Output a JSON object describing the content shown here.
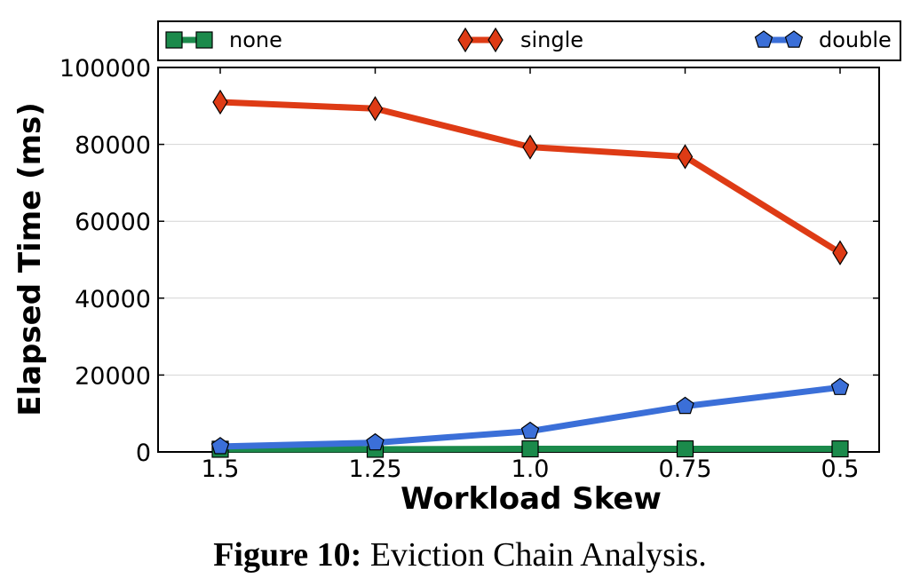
{
  "chart_data": {
    "type": "line",
    "xlabel": "Workload Skew",
    "ylabel": "Elapsed Time (ms)",
    "categories": [
      "1.5",
      "1.25",
      "1.0",
      "0.75",
      "0.5"
    ],
    "ylim": [
      0,
      100000
    ],
    "yticks": [
      "0",
      "20000",
      "40000",
      "60000",
      "80000",
      "100000"
    ],
    "ytick_values": [
      0,
      20000,
      40000,
      60000,
      80000,
      100000
    ],
    "grid": "horizontal",
    "legend_position": "top",
    "series": [
      {
        "name": "none",
        "values": [
          700,
          700,
          800,
          800,
          800
        ],
        "color": "#1b8a4b",
        "marker": "square"
      },
      {
        "name": "single",
        "values": [
          91000,
          89300,
          79300,
          76800,
          51800
        ],
        "color": "#de3b15",
        "marker": "diamond"
      },
      {
        "name": "double",
        "values": [
          1400,
          2400,
          5400,
          11900,
          16800
        ],
        "color": "#3b6fd8",
        "marker": "pentagon"
      }
    ]
  },
  "caption": {
    "label": "Figure 10:",
    "text": " Eviction Chain Analysis."
  }
}
